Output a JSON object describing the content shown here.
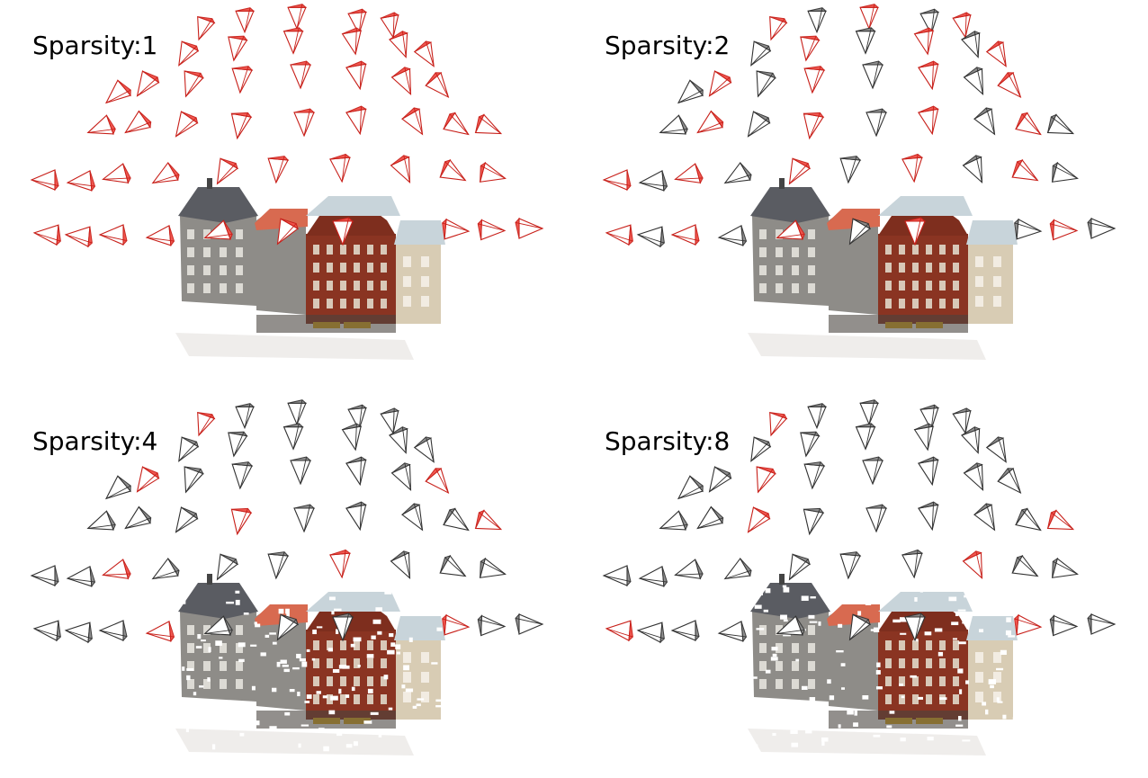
{
  "panels": [
    {
      "label": "Sparsity:1",
      "sparsity": 1
    },
    {
      "label": "Sparsity:2",
      "sparsity": 2
    },
    {
      "label": "Sparsity:4",
      "sparsity": 4
    },
    {
      "label": "Sparsity:8",
      "sparsity": 8
    }
  ],
  "colors": {
    "selected_camera": "#f05048",
    "selected_camera_dark": "#c8201a",
    "unselected_camera": "#8a8a8a",
    "unselected_camera_dark": "#333333",
    "background": "#ffffff",
    "building_grey": "#8e8c88",
    "building_red_roof": "#d86a50",
    "building_brick": "#8a3422",
    "building_cream": "#d8ccb4",
    "roof_slate": "#5a5c62",
    "roof_light": "#c8d4da",
    "awning_yellow": "#e4b020"
  },
  "icons": {
    "camera": "camera-frustum-icon",
    "scene": "building-point-cloud"
  }
}
